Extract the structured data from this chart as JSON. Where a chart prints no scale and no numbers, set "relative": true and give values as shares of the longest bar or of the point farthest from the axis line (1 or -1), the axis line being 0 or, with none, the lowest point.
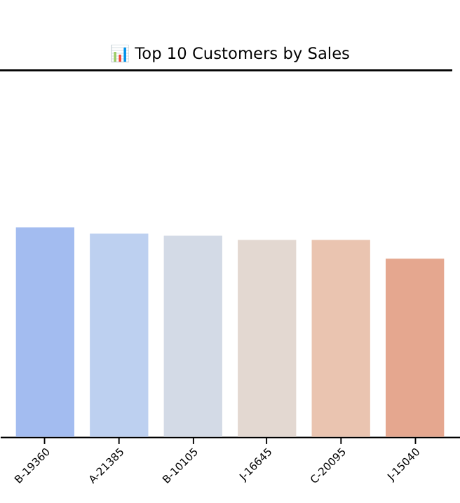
{
  "chart_data": {
    "type": "bar",
    "title": "📊 Top 10 Customers by Sales",
    "relative": true,
    "categories": [
      "B-19360",
      "A-21385",
      "B-10105",
      "J-16645",
      "C-20095",
      "J-15040"
    ],
    "values": [
      1,
      0.97,
      0.96,
      0.94,
      0.94,
      0.85
    ],
    "colors": [
      "#a3bcf0",
      "#bdd0f0",
      "#d3dae6",
      "#e3d8d1",
      "#eac4b0",
      "#e5a78f"
    ],
    "grid": false
  }
}
